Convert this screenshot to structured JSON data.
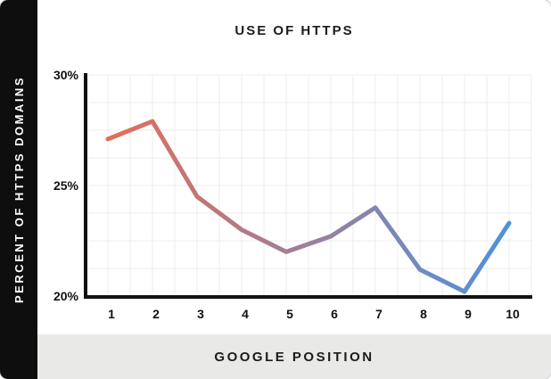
{
  "card": {
    "background": "#ffffff",
    "sidebar_bg": "#0e0e0e",
    "footer_bg": "#e9e9e7"
  },
  "chart_data": {
    "type": "line",
    "title": "USE OF HTTPS",
    "xlabel": "GOOGLE POSITION",
    "ylabel": "PERCENT OF HTTPS DOMAINS",
    "categories": [
      1,
      2,
      3,
      4,
      5,
      6,
      7,
      8,
      9,
      10
    ],
    "values": [
      27.1,
      27.9,
      24.5,
      23.0,
      22.0,
      22.7,
      24.0,
      21.2,
      20.2,
      23.3
    ],
    "ylim": [
      20,
      30
    ],
    "yticks": [
      {
        "value": 30,
        "label": "30%"
      },
      {
        "value": 25,
        "label": "25%"
      },
      {
        "value": 20,
        "label": "20%"
      }
    ],
    "grid": true,
    "legend": "none",
    "line_gradient": [
      "#e26e58",
      "#9d7f9c",
      "#4c93da"
    ],
    "grid_color": "#ececec",
    "axis_color": "#111111",
    "tick_color": "#111111"
  }
}
